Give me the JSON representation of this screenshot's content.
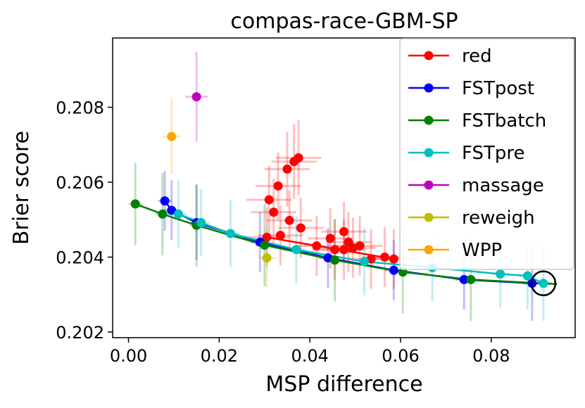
{
  "chart_data": {
    "type": "scatter",
    "title": "compas-race-GBM-SP",
    "xlabel": "MSP difference",
    "ylabel": "Brier score",
    "xlim": [
      -0.0035,
      0.0985
    ],
    "ylim": [
      0.20185,
      0.20985
    ],
    "xticks": [
      0.0,
      0.02,
      0.04,
      0.06,
      0.08
    ],
    "xtick_labels": [
      "0.00",
      "0.02",
      "0.04",
      "0.06",
      "0.08"
    ],
    "yticks": [
      0.202,
      0.204,
      0.206,
      0.208
    ],
    "ytick_labels": [
      "0.202",
      "0.204",
      "0.206",
      "0.208"
    ],
    "legend_position": "top-right",
    "highlight": {
      "x": 0.0915,
      "y": 0.2033,
      "label": "circled point"
    },
    "series": [
      {
        "name": "red",
        "color": "#ff0000",
        "line": [
          [
            0.0305,
            0.20453
          ],
          [
            0.0585,
            0.20395
          ]
        ],
        "points": [
          {
            "x": 0.0375,
            "y": 0.20665,
            "xerr": 0.005,
            "yerr": 0.001
          },
          {
            "x": 0.0365,
            "y": 0.20655,
            "xerr": 0.005,
            "yerr": 0.001
          },
          {
            "x": 0.035,
            "y": 0.20635,
            "xerr": 0.005,
            "yerr": 0.001
          },
          {
            "x": 0.033,
            "y": 0.2059,
            "xerr": 0.005,
            "yerr": 0.0009
          },
          {
            "x": 0.031,
            "y": 0.20553,
            "xerr": 0.005,
            "yerr": 0.0009
          },
          {
            "x": 0.032,
            "y": 0.2052,
            "xerr": 0.005,
            "yerr": 0.0009
          },
          {
            "x": 0.0355,
            "y": 0.20498,
            "xerr": 0.005,
            "yerr": 0.0008
          },
          {
            "x": 0.0335,
            "y": 0.20458,
            "xerr": 0.005,
            "yerr": 0.0008
          },
          {
            "x": 0.0305,
            "y": 0.20453,
            "xerr": 0.005,
            "yerr": 0.0008
          },
          {
            "x": 0.038,
            "y": 0.20478,
            "xerr": 0.005,
            "yerr": 0.0008
          },
          {
            "x": 0.0415,
            "y": 0.2043,
            "xerr": 0.005,
            "yerr": 0.0008
          },
          {
            "x": 0.0445,
            "y": 0.2045,
            "xerr": 0.005,
            "yerr": 0.0008
          },
          {
            "x": 0.0475,
            "y": 0.20468,
            "xerr": 0.005,
            "yerr": 0.0008
          },
          {
            "x": 0.0455,
            "y": 0.2042,
            "xerr": 0.005,
            "yerr": 0.0008
          },
          {
            "x": 0.0485,
            "y": 0.2044,
            "xerr": 0.005,
            "yerr": 0.0008
          },
          {
            "x": 0.051,
            "y": 0.2043,
            "xerr": 0.005,
            "yerr": 0.0008
          },
          {
            "x": 0.0495,
            "y": 0.20425,
            "xerr": 0.005,
            "yerr": 0.0008
          },
          {
            "x": 0.0475,
            "y": 0.2042,
            "xerr": 0.005,
            "yerr": 0.0008
          },
          {
            "x": 0.0535,
            "y": 0.20395,
            "xerr": 0.005,
            "yerr": 0.0008
          },
          {
            "x": 0.0565,
            "y": 0.204,
            "xerr": 0.005,
            "yerr": 0.0008
          },
          {
            "x": 0.0585,
            "y": 0.20395,
            "xerr": 0.005,
            "yerr": 0.0008
          }
        ]
      },
      {
        "name": "FSTpost",
        "color": "#0000ff",
        "line": [
          [
            0.008,
            0.2055
          ],
          [
            0.0095,
            0.20525
          ],
          [
            0.015,
            0.20492
          ],
          [
            0.029,
            0.2044
          ],
          [
            0.044,
            0.20398
          ],
          [
            0.0585,
            0.20365
          ],
          [
            0.074,
            0.2034
          ],
          [
            0.089,
            0.2033
          ],
          [
            0.0915,
            0.2033
          ]
        ],
        "points": [
          {
            "x": 0.008,
            "y": 0.2055,
            "xerr": 0.0015,
            "yerr": 0.0008
          },
          {
            "x": 0.0095,
            "y": 0.20525,
            "xerr": 0.0015,
            "yerr": 0.0008
          },
          {
            "x": 0.015,
            "y": 0.20492,
            "xerr": 0.0015,
            "yerr": 0.001
          },
          {
            "x": 0.029,
            "y": 0.2044,
            "xerr": 0.002,
            "yerr": 0.0008
          },
          {
            "x": 0.044,
            "y": 0.20398,
            "xerr": 0.002,
            "yerr": 0.0008
          },
          {
            "x": 0.0585,
            "y": 0.20365,
            "xerr": 0.002,
            "yerr": 0.0008
          },
          {
            "x": 0.074,
            "y": 0.2034,
            "xerr": 0.002,
            "yerr": 0.0008
          },
          {
            "x": 0.089,
            "y": 0.2033,
            "xerr": 0.002,
            "yerr": 0.001
          }
        ]
      },
      {
        "name": "FSTbatch",
        "color": "#008000",
        "line": [
          [
            0.0015,
            0.20542
          ],
          [
            0.0075,
            0.20515
          ],
          [
            0.015,
            0.20485
          ],
          [
            0.03,
            0.20432
          ],
          [
            0.0455,
            0.20392
          ],
          [
            0.0605,
            0.2036
          ],
          [
            0.0755,
            0.2034
          ],
          [
            0.0915,
            0.2033
          ],
          [
            0.0945,
            0.20328
          ]
        ],
        "points": [
          {
            "x": 0.0015,
            "y": 0.20542,
            "xerr": 0.0015,
            "yerr": 0.0011
          },
          {
            "x": 0.0075,
            "y": 0.20515,
            "xerr": 0.0015,
            "yerr": 0.0011
          },
          {
            "x": 0.015,
            "y": 0.20485,
            "xerr": 0.0015,
            "yerr": 0.0011
          },
          {
            "x": 0.03,
            "y": 0.20432,
            "xerr": 0.002,
            "yerr": 0.0011
          },
          {
            "x": 0.0455,
            "y": 0.20392,
            "xerr": 0.002,
            "yerr": 0.0011
          },
          {
            "x": 0.0605,
            "y": 0.2036,
            "xerr": 0.002,
            "yerr": 0.0011
          },
          {
            "x": 0.0755,
            "y": 0.2034,
            "xerr": 0.002,
            "yerr": 0.0011
          }
        ]
      },
      {
        "name": "FSTpre",
        "color": "#00bfbf",
        "line": [
          [
            0.011,
            0.20515
          ],
          [
            0.016,
            0.20492
          ],
          [
            0.0225,
            0.20463
          ],
          [
            0.037,
            0.2042
          ],
          [
            0.052,
            0.20388
          ],
          [
            0.067,
            0.20372
          ],
          [
            0.082,
            0.20355
          ],
          [
            0.088,
            0.2035
          ],
          [
            0.0915,
            0.2033
          ]
        ],
        "points": [
          {
            "x": 0.011,
            "y": 0.20515,
            "xerr": 0.002,
            "yerr": 0.0009
          },
          {
            "x": 0.016,
            "y": 0.20492,
            "xerr": 0.002,
            "yerr": 0.0009
          },
          {
            "x": 0.0225,
            "y": 0.20463,
            "xerr": 0.002,
            "yerr": 0.0009
          },
          {
            "x": 0.037,
            "y": 0.2042,
            "xerr": 0.002,
            "yerr": 0.0009
          },
          {
            "x": 0.052,
            "y": 0.20388,
            "xerr": 0.002,
            "yerr": 0.0009
          },
          {
            "x": 0.067,
            "y": 0.20372,
            "xerr": 0.002,
            "yerr": 0.0009
          },
          {
            "x": 0.082,
            "y": 0.20355,
            "xerr": 0.002,
            "yerr": 0.0009
          },
          {
            "x": 0.088,
            "y": 0.2035,
            "xerr": 0.002,
            "yerr": 0.0009
          },
          {
            "x": 0.0915,
            "y": 0.2033,
            "xerr": 0.0015,
            "yerr": 0.001
          }
        ]
      },
      {
        "name": "massage",
        "color": "#bf00bf",
        "line": [],
        "points": [
          {
            "x": 0.015,
            "y": 0.20828,
            "xerr": 0.0025,
            "yerr": 0.0012
          }
        ]
      },
      {
        "name": "reweigh",
        "color": "#bfbf00",
        "line": [],
        "points": [
          {
            "x": 0.0305,
            "y": 0.20398,
            "xerr": 0.002,
            "yerr": 0.0008
          }
        ]
      },
      {
        "name": "WPP",
        "color": "#ffa500",
        "line": [],
        "points": [
          {
            "x": 0.0095,
            "y": 0.20722,
            "xerr": 0.002,
            "yerr": 0.001
          }
        ]
      }
    ]
  }
}
